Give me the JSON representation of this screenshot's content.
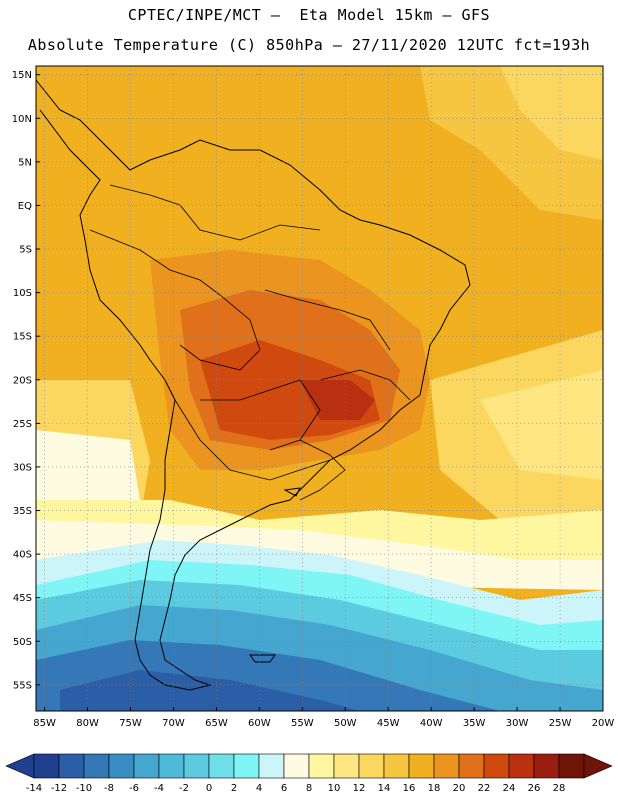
{
  "header": {
    "line1": "CPTEC/INPE/MCT –  Eta Model 15km – GFS",
    "line2": "Absolute Temperature (C) 850hPa – 27/11/2020 12UTC fct=193h"
  },
  "map": {
    "lat_labels": [
      "15N",
      "10N",
      "5N",
      "EQ",
      "5S",
      "10S",
      "15S",
      "20S",
      "25S",
      "30S",
      "35S",
      "40S",
      "45S",
      "50S",
      "55S"
    ],
    "lon_labels": [
      "85W",
      "80W",
      "75W",
      "70W",
      "65W",
      "60W",
      "55W",
      "50W",
      "45W",
      "40W",
      "35W",
      "30W",
      "25W",
      "20W"
    ],
    "lat_range": [
      16,
      -58
    ],
    "lon_range": [
      -86,
      -20
    ]
  },
  "colorbar": {
    "labels": [
      "-14",
      "-12",
      "-10",
      "-8",
      "-6",
      "-4",
      "-2",
      "0",
      "2",
      "4",
      "6",
      "8",
      "10",
      "12",
      "14",
      "16",
      "18",
      "20",
      "22",
      "24",
      "26",
      "28"
    ],
    "colors": [
      "#1f3f8f",
      "#2a5ea6",
      "#3478b8",
      "#3a8dc4",
      "#45a6cf",
      "#4fb9d8",
      "#5ccbe0",
      "#6fe0ea",
      "#7ff5f5",
      "#ccf5fa",
      "#fffbe0",
      "#fff7a0",
      "#ffe680",
      "#fcd760",
      "#f7c640",
      "#f0b020",
      "#eb9520",
      "#e0701a",
      "#d04a10",
      "#b83010",
      "#9a1e10",
      "#6e1508"
    ]
  }
}
